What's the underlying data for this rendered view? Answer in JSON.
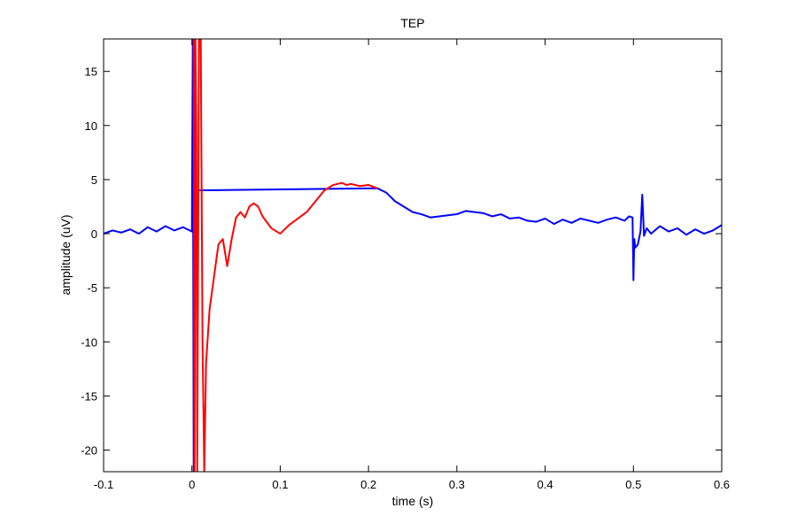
{
  "chart_data": {
    "type": "line",
    "title": "TEP",
    "xlabel": "time (s)",
    "ylabel": "amplitude (uV)",
    "xlim": [
      -0.1,
      0.6
    ],
    "ylim": [
      -22,
      18
    ],
    "xticks": [
      -0.1,
      0,
      0.1,
      0.2,
      0.3,
      0.4,
      0.5,
      0.6
    ],
    "xtick_labels": [
      "-0.1",
      "0",
      "0.1",
      "0.2",
      "0.3",
      "0.4",
      "0.5",
      "0.6"
    ],
    "yticks": [
      -20,
      -15,
      -10,
      -5,
      0,
      5,
      10,
      15
    ],
    "ytick_labels": [
      "-20",
      "-15",
      "-10",
      "-5",
      "0",
      "5",
      "10",
      "15"
    ],
    "grid": false,
    "legend": "none",
    "series": [
      {
        "color": "#0000ff",
        "x": [
          -0.1,
          -0.09,
          -0.08,
          -0.07,
          -0.06,
          -0.05,
          -0.04,
          -0.03,
          -0.02,
          -0.01,
          0.0,
          0.001,
          0.002,
          0.003,
          0.004,
          0.21,
          0.22,
          0.23,
          0.24,
          0.25,
          0.26,
          0.27,
          0.28,
          0.29,
          0.3,
          0.31,
          0.32,
          0.33,
          0.34,
          0.35,
          0.36,
          0.37,
          0.38,
          0.39,
          0.4,
          0.41,
          0.42,
          0.43,
          0.44,
          0.45,
          0.46,
          0.47,
          0.48,
          0.49,
          0.495,
          0.499,
          0.5,
          0.501,
          0.502,
          0.505,
          0.508,
          0.51,
          0.512,
          0.515,
          0.52,
          0.53,
          0.54,
          0.55,
          0.56,
          0.57,
          0.58,
          0.59,
          0.6
        ],
        "y": [
          0.0,
          0.3,
          0.1,
          0.4,
          0.0,
          0.6,
          0.2,
          0.7,
          0.3,
          0.6,
          0.2,
          18,
          -22,
          18,
          4.0,
          4.2,
          3.8,
          3.0,
          2.5,
          2.0,
          1.8,
          1.5,
          1.6,
          1.7,
          1.8,
          2.1,
          2.0,
          1.9,
          1.6,
          1.8,
          1.4,
          1.5,
          1.2,
          1.1,
          1.4,
          0.9,
          1.3,
          1.0,
          1.4,
          1.2,
          1.0,
          1.3,
          1.5,
          1.2,
          1.6,
          1.5,
          -4.3,
          -0.5,
          -1.3,
          -1.0,
          0.2,
          3.6,
          -0.2,
          0.5,
          0.0,
          0.7,
          0.2,
          0.5,
          -0.1,
          0.4,
          0.0,
          0.3,
          0.8
        ]
      },
      {
        "color": "#ff0000",
        "x": [
          0.002,
          0.003,
          0.004,
          0.005,
          0.006,
          0.008,
          0.01,
          0.012,
          0.014,
          0.016,
          0.02,
          0.025,
          0.03,
          0.035,
          0.04,
          0.045,
          0.05,
          0.055,
          0.06,
          0.065,
          0.07,
          0.075,
          0.08,
          0.09,
          0.1,
          0.11,
          0.12,
          0.13,
          0.14,
          0.15,
          0.16,
          0.17,
          0.175,
          0.18,
          0.19,
          0.2,
          0.21
        ],
        "y": [
          18,
          -22,
          18,
          10,
          -22,
          18,
          18,
          -10,
          -22,
          -12,
          -7,
          -4,
          -1,
          -0.5,
          -3.0,
          -0.5,
          1.5,
          2.0,
          1.5,
          2.5,
          2.8,
          2.5,
          1.6,
          0.5,
          0.0,
          0.8,
          1.4,
          2.0,
          3.0,
          4.0,
          4.5,
          4.7,
          4.5,
          4.6,
          4.4,
          4.5,
          4.2
        ]
      }
    ]
  }
}
